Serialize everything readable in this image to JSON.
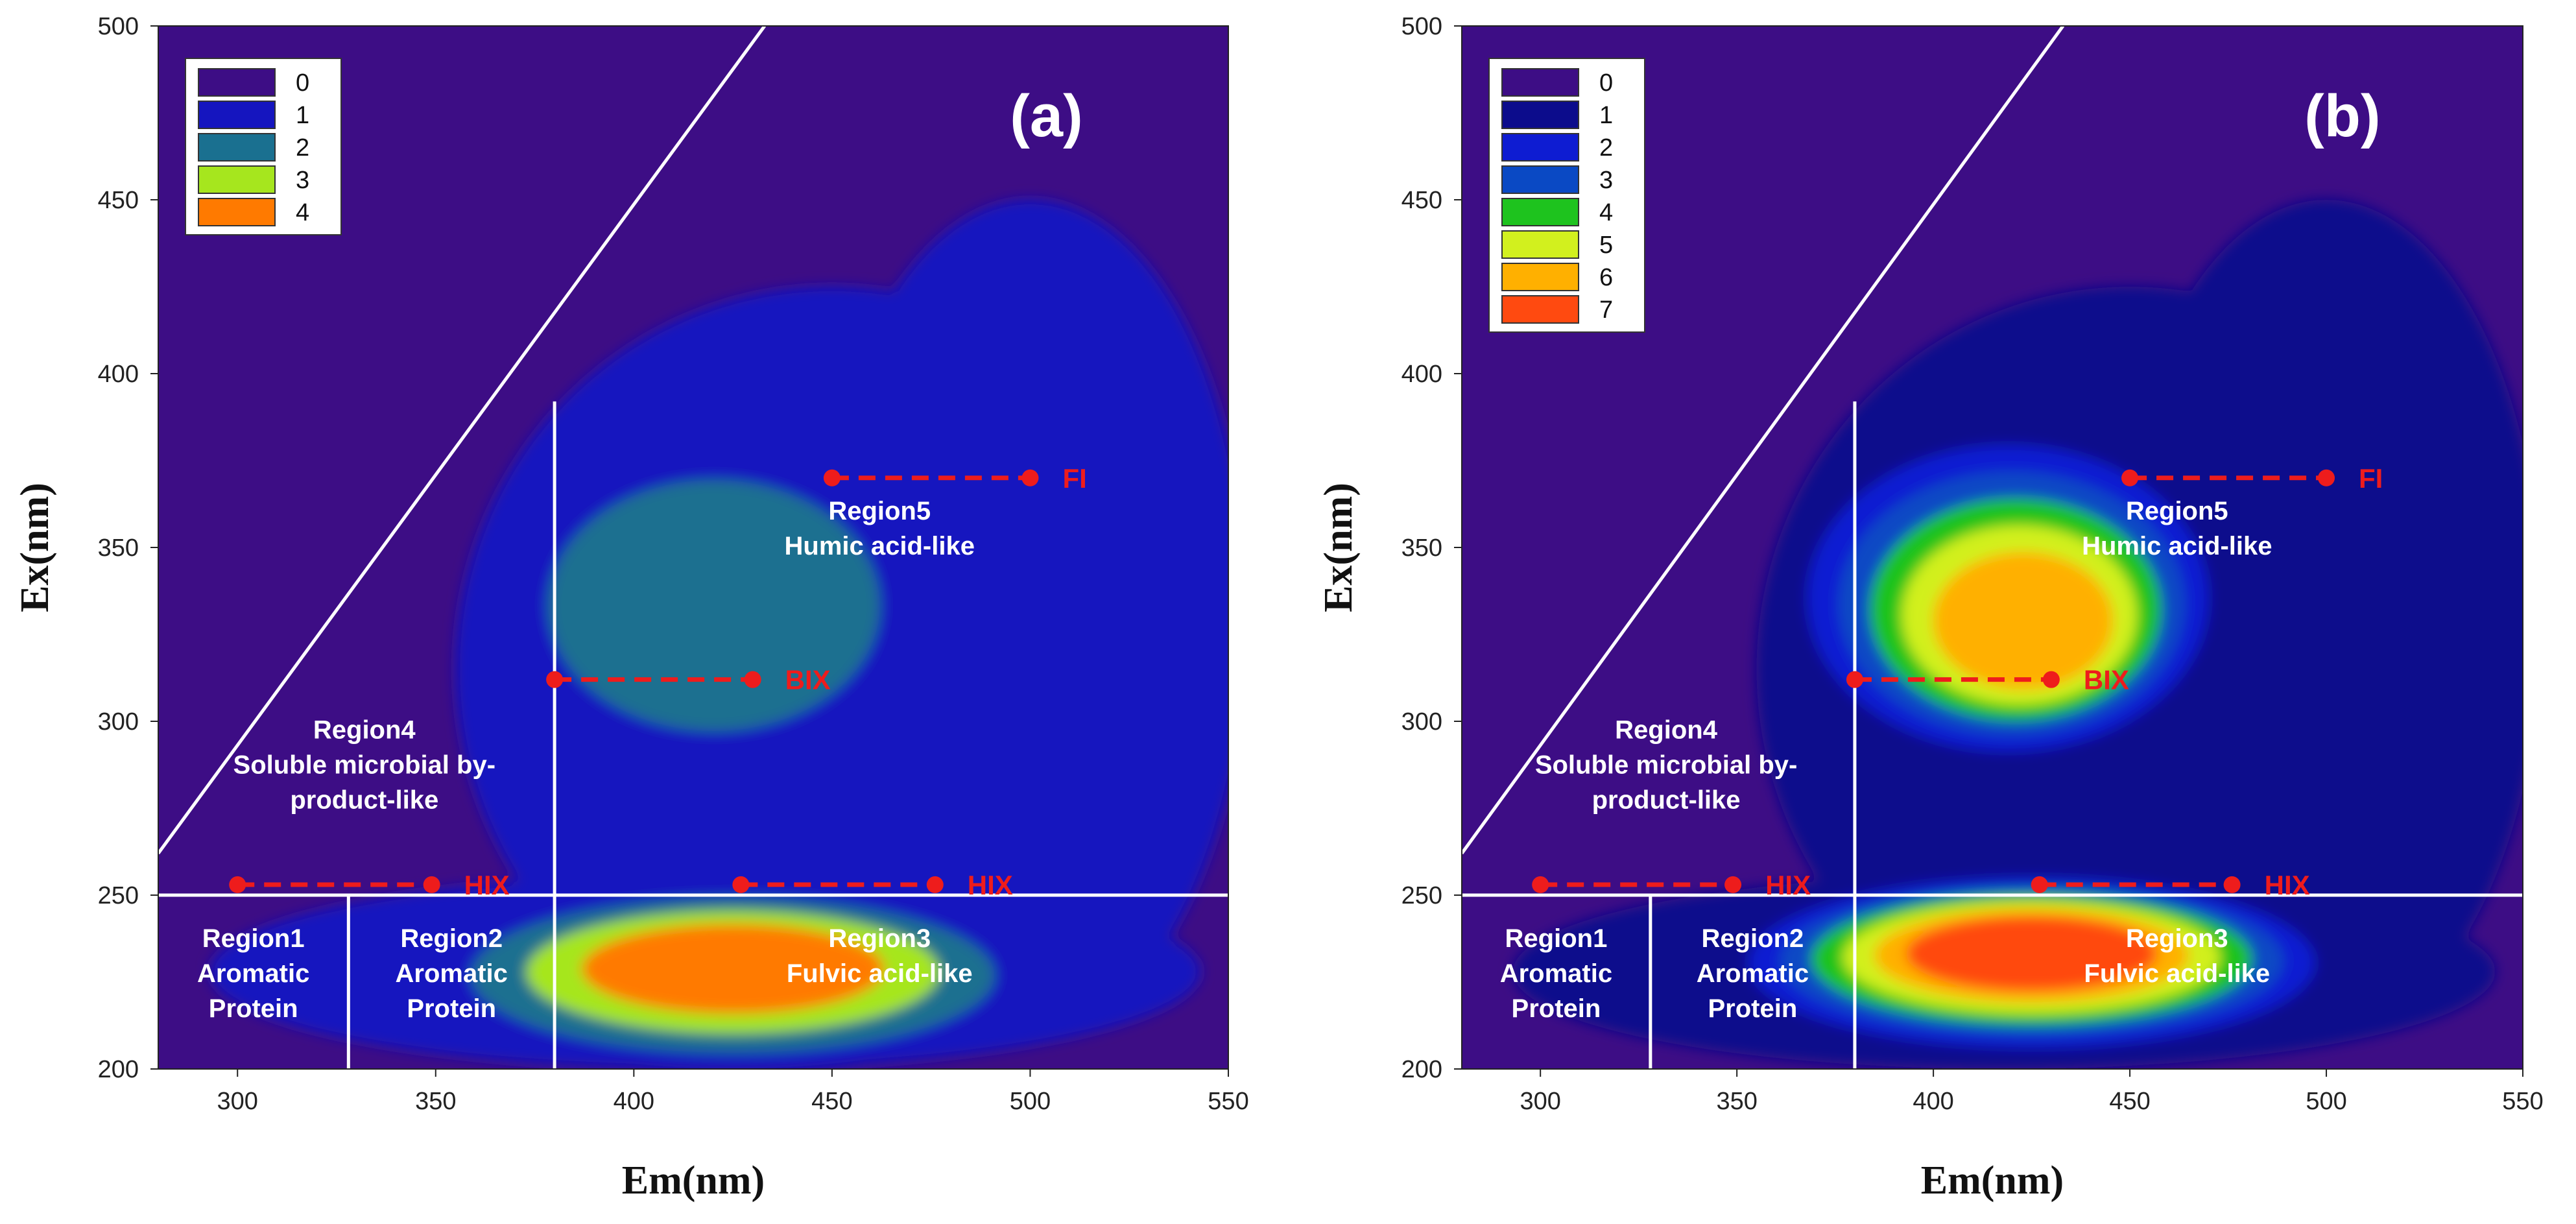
{
  "chart_data": [
    {
      "type": "heatmap",
      "panel_label": "(a)",
      "xlabel": "Em(nm)",
      "ylabel": "Ex(nm)",
      "xlim": [
        280,
        550
      ],
      "ylim": [
        200,
        500
      ],
      "xticks": [
        "300",
        "350",
        "400",
        "450",
        "500",
        "550"
      ],
      "yticks": [
        "200",
        "250",
        "300",
        "350",
        "400",
        "450",
        "500"
      ],
      "grid": false,
      "legend_position": "top-left",
      "levels": [
        {
          "label": "0",
          "color": "#3d0d85"
        },
        {
          "label": "1",
          "color": "#1515bf"
        },
        {
          "label": "2",
          "color": "#1a7090"
        },
        {
          "label": "3",
          "color": "#a6e61e"
        },
        {
          "label": "4",
          "color": "#ff7a00"
        }
      ],
      "peaks": [
        {
          "em": 418,
          "ex": 337,
          "level": 2.7
        },
        {
          "em": 425,
          "ex": 226,
          "level": 4.3
        }
      ],
      "regions": [
        {
          "lines": [
            "Region1",
            "Aromatic",
            "Protein"
          ],
          "em": 304,
          "ex": 225
        },
        {
          "lines": [
            "Region2",
            "Aromatic",
            "Protein"
          ],
          "em": 354,
          "ex": 225
        },
        {
          "lines": [
            "Region3",
            "Fulvic acid-like"
          ],
          "em": 462,
          "ex": 230
        },
        {
          "lines": [
            "Region4",
            "Soluble microbial by-",
            "product-like"
          ],
          "em": 332,
          "ex": 285
        },
        {
          "lines": [
            "Region5",
            "Humic acid-like"
          ],
          "em": 462,
          "ex": 353
        }
      ],
      "indices": [
        {
          "label": "FI",
          "em": [
            450,
            500
          ],
          "ex": 370
        },
        {
          "label": "BIX",
          "em": [
            380,
            430
          ],
          "ex": 312
        },
        {
          "label": "HIX",
          "em": [
            300,
            349
          ],
          "ex": 253
        },
        {
          "label": "HIX",
          "em": [
            427,
            476
          ],
          "ex": 253
        }
      ]
    },
    {
      "type": "heatmap",
      "panel_label": "(b)",
      "xlabel": "Em(nm)",
      "ylabel": "Ex(nm)",
      "xlim": [
        280,
        550
      ],
      "ylim": [
        200,
        500
      ],
      "xticks": [
        "300",
        "350",
        "400",
        "450",
        "500",
        "550"
      ],
      "yticks": [
        "200",
        "250",
        "300",
        "350",
        "400",
        "450",
        "500"
      ],
      "grid": false,
      "legend_position": "top-left",
      "levels": [
        {
          "label": "0",
          "color": "#3d0d85"
        },
        {
          "label": "1",
          "color": "#0c0c8c"
        },
        {
          "label": "2",
          "color": "#0e1cd2"
        },
        {
          "label": "3",
          "color": "#0a49c4"
        },
        {
          "label": "4",
          "color": "#1ec31e"
        },
        {
          "label": "5",
          "color": "#d2f01e"
        },
        {
          "label": "6",
          "color": "#ffb000"
        },
        {
          "label": "7",
          "color": "#ff4a10"
        }
      ],
      "peaks": [
        {
          "em": 418,
          "ex": 337,
          "level": 6.2
        },
        {
          "em": 425,
          "ex": 230,
          "level": 7.5
        }
      ],
      "regions": [
        {
          "lines": [
            "Region1",
            "Aromatic",
            "Protein"
          ],
          "em": 304,
          "ex": 225
        },
        {
          "lines": [
            "Region2",
            "Aromatic",
            "Protein"
          ],
          "em": 354,
          "ex": 225
        },
        {
          "lines": [
            "Region3",
            "Fulvic acid-like"
          ],
          "em": 462,
          "ex": 230
        },
        {
          "lines": [
            "Region4",
            "Soluble microbial by-",
            "product-like"
          ],
          "em": 332,
          "ex": 285
        },
        {
          "lines": [
            "Region5",
            "Humic acid-like"
          ],
          "em": 462,
          "ex": 353
        }
      ],
      "indices": [
        {
          "label": "FI",
          "em": [
            450,
            500
          ],
          "ex": 370
        },
        {
          "label": "BIX",
          "em": [
            380,
            430
          ],
          "ex": 312
        },
        {
          "label": "HIX",
          "em": [
            300,
            349
          ],
          "ex": 253
        },
        {
          "label": "HIX",
          "em": [
            427,
            476
          ],
          "ex": 253
        }
      ]
    }
  ]
}
